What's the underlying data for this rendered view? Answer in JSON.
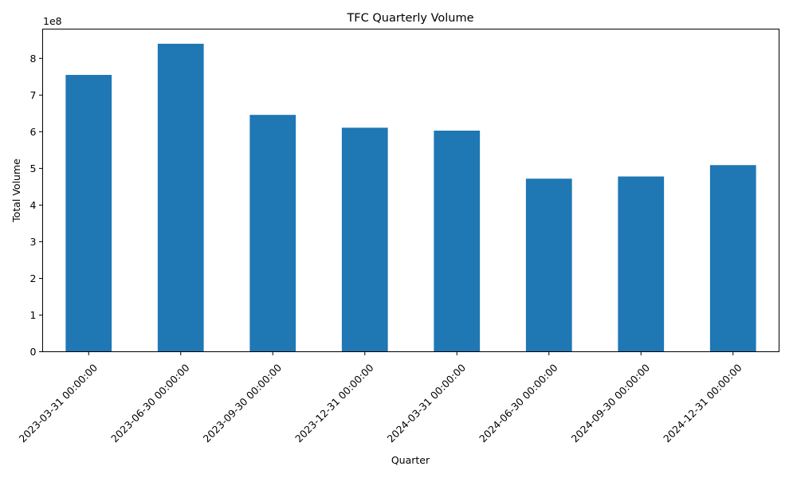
{
  "chart_data": {
    "type": "bar",
    "title": "TFC Quarterly Volume",
    "xlabel": "Quarter",
    "ylabel": "Total Volume",
    "y_offset_label": "1e8",
    "y_scale": 100000000,
    "categories": [
      "2023-03-31 00:00:00",
      "2023-06-30 00:00:00",
      "2023-09-30 00:00:00",
      "2023-12-31 00:00:00",
      "2024-03-31 00:00:00",
      "2024-06-30 00:00:00",
      "2024-09-30 00:00:00",
      "2024-12-31 00:00:00"
    ],
    "values": [
      755000000,
      840000000,
      646000000,
      611000000,
      603000000,
      472000000,
      478000000,
      509000000
    ],
    "ylim": [
      0,
      880000000
    ],
    "yticks": [
      0,
      1,
      2,
      3,
      4,
      5,
      6,
      7,
      8
    ],
    "grid": false,
    "legend": "none",
    "bar_color": "#1f77b4"
  }
}
